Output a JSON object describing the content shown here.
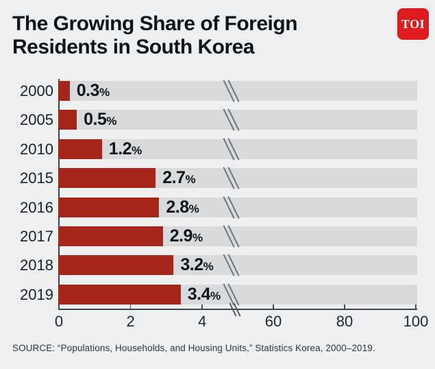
{
  "page": {
    "background": "#edeff1"
  },
  "header": {
    "title_line1": "The Growing Share of Foreign",
    "title_line2": "Residents in South Korea",
    "logo_text": "TOI",
    "logo_color": "#de1b1f"
  },
  "chart_data": {
    "type": "bar",
    "orientation": "horizontal",
    "title": "The Growing Share of Foreign Residents in South Korea",
    "categories": [
      "2000",
      "2005",
      "2010",
      "2015",
      "2016",
      "2017",
      "2018",
      "2019"
    ],
    "values": [
      0.3,
      0.5,
      1.2,
      2.7,
      2.8,
      2.9,
      3.2,
      3.4
    ],
    "value_labels": [
      "0.3",
      "0.5",
      "1.2",
      "2.7",
      "2.8",
      "2.9",
      "3.2",
      "3.4"
    ],
    "value_suffix": "%",
    "bar_color": "#a7261c",
    "track_color": "#d9dadc",
    "axis_break": {
      "present": true,
      "between": [
        4,
        60
      ]
    },
    "x_ticks_left": [
      "0",
      "2",
      "4"
    ],
    "x_ticks_right": [
      "60",
      "80",
      "100"
    ],
    "x_axis_range_left": [
      0,
      5
    ],
    "x_axis_range_right": [
      50,
      100
    ],
    "grid": false,
    "legend": false
  },
  "footer": {
    "source": "SOURCE: “Populations, Households, and Housing Units,” Statistics Korea, 2000–2019."
  }
}
